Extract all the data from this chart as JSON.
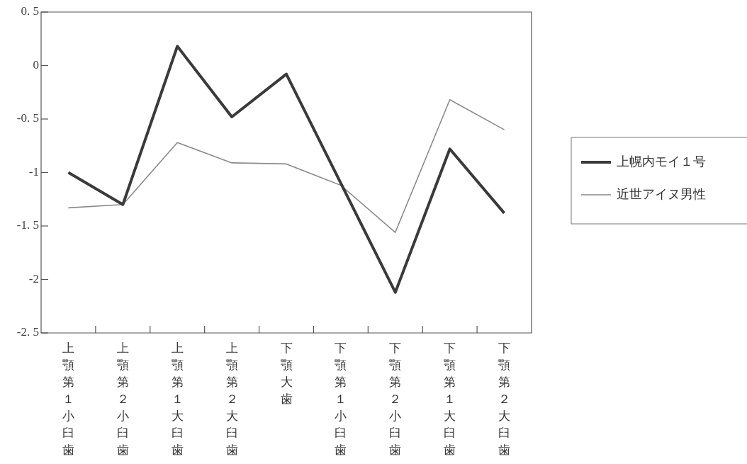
{
  "chart_data": {
    "type": "line",
    "categories": [
      "上顎第１小臼歯",
      "上顎第２小臼歯",
      "上顎第１大臼歯",
      "上顎第２大臼歯",
      "下顎大歯",
      "下顎第１小臼歯",
      "下顎第２小臼歯",
      "下顎第１大臼歯",
      "下顎第２大臼歯"
    ],
    "series": [
      {
        "name": "上幌内モイ１号",
        "color": "#3a3a3a",
        "values": [
          -1.0,
          -1.3,
          0.18,
          -0.48,
          -0.08,
          -1.1,
          -2.12,
          -0.78,
          -1.38
        ]
      },
      {
        "name": "近世アイヌ男性",
        "color": "#8a8a8a",
        "values": [
          -1.33,
          -1.3,
          -0.72,
          -0.91,
          -0.92,
          -1.12,
          -1.56,
          -0.32,
          -0.6
        ]
      }
    ],
    "ylim": [
      -2.5,
      0.5
    ],
    "yticks": [
      {
        "value": -2.5,
        "label": "-2. 5"
      },
      -2,
      {
        "value": -1.5,
        "label": "-1. 5"
      },
      -1,
      {
        "value": -0.5,
        "label": "-0. 5"
      },
      0,
      {
        "value": 0.5,
        "label": "0. 5"
      }
    ],
    "legend": "right",
    "marker": "none",
    "line_style": "solid",
    "grid": false
  }
}
